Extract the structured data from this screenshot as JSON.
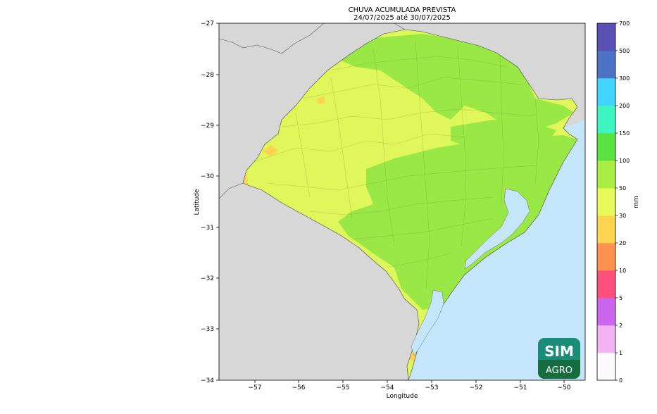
{
  "title": "CHUVA ACUMULADA PREVISTA",
  "subtitle": "24/07/2025 até 30/07/2025",
  "axes": {
    "xlabel": "Longitude",
    "ylabel": "Latitude",
    "x_ticks": [
      "−57",
      "−56",
      "−55",
      "−54",
      "−53",
      "−52",
      "−51",
      "−50"
    ],
    "y_ticks": [
      "−27",
      "−28",
      "−29",
      "−30",
      "−31",
      "−32",
      "−33",
      "−34"
    ],
    "xlim": [
      -57.75,
      -49.55
    ],
    "ylim": [
      -34,
      -27
    ]
  },
  "colorbar": {
    "unit": "mm",
    "labels": [
      "0",
      "1",
      "2",
      "5",
      "10",
      "20",
      "30",
      "50",
      "100",
      "150",
      "200",
      "300",
      "500",
      "700"
    ],
    "colors": [
      "#fdfafd",
      "#f2b3f2",
      "#cc66ee",
      "#ff4f7b",
      "#ff914f",
      "#ffd54f",
      "#e6fa5a",
      "#aaee44",
      "#59e340",
      "#3df5c0",
      "#40d4ff",
      "#4c73c8",
      "#5a4fb4"
    ]
  },
  "map_colors": {
    "ocean": "#c5e6fa",
    "outside_land": "#d7d7d7",
    "band_30_50": "#dff75a",
    "band_50_100": "#9ae845",
    "band_20_30": "#ffd54f"
  },
  "logo": {
    "line1": "SIM",
    "line2": "AGRO"
  }
}
